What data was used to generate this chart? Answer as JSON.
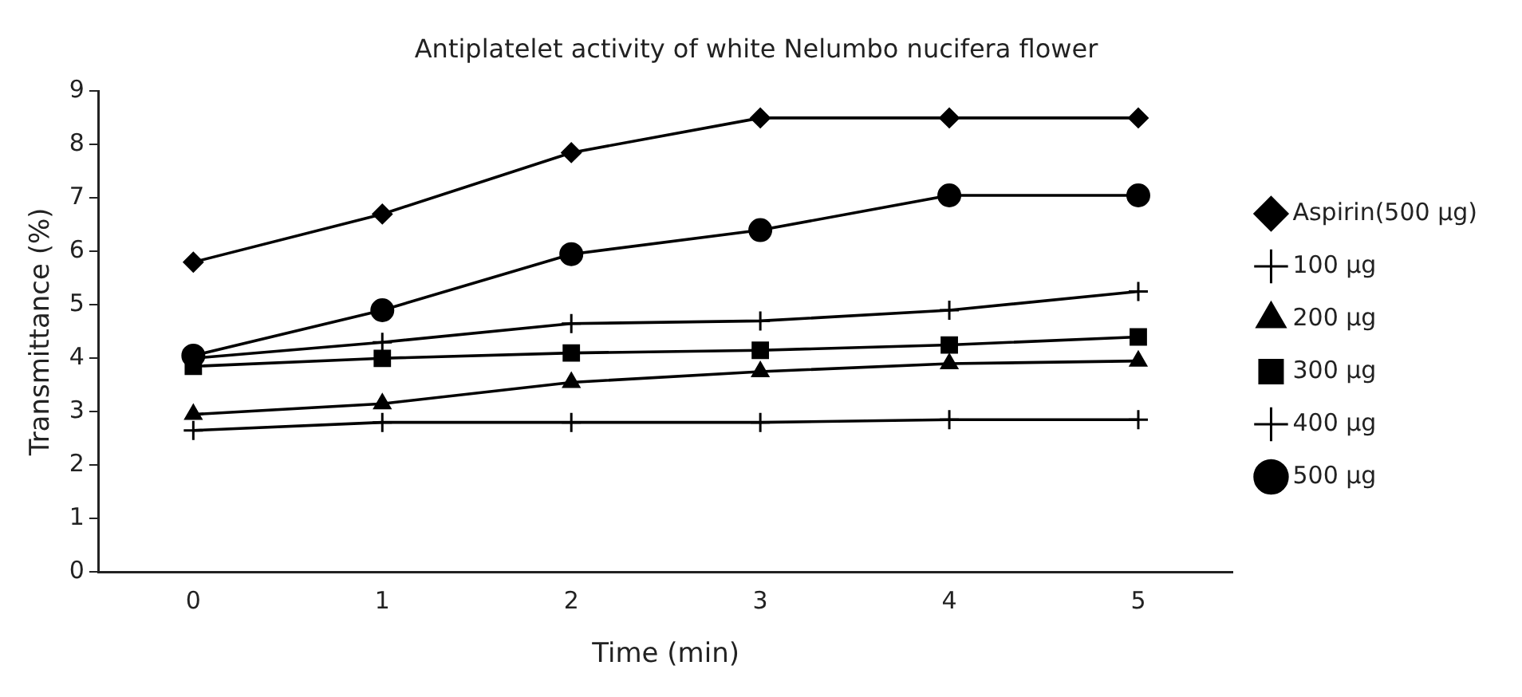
{
  "chart_data": {
    "type": "line",
    "title": "Antiplatelet activity of white Nelumbo nucifera flower",
    "xlabel": "Time (min)",
    "ylabel": "Transmittance (%)",
    "categories": [
      "0",
      "1",
      "2",
      "3",
      "4",
      "5"
    ],
    "series": [
      {
        "name": "Aspirin(500 µg)",
        "color": "#000000",
        "marker": "diamond",
        "values": [
          5.8,
          6.7,
          7.85,
          8.5,
          8.5,
          8.5
        ]
      },
      {
        "name": "100 µg",
        "color": "#000000",
        "marker": "cross",
        "values": [
          2.65,
          2.8,
          2.8,
          2.8,
          2.85,
          2.85
        ]
      },
      {
        "name": "200 µg",
        "color": "#000000",
        "marker": "triangle",
        "values": [
          2.95,
          3.15,
          3.55,
          3.75,
          3.9,
          3.95
        ]
      },
      {
        "name": "300 µg",
        "color": "#000000",
        "marker": "square",
        "values": [
          3.85,
          4.0,
          4.1,
          4.15,
          4.25,
          4.4
        ]
      },
      {
        "name": "400 µg",
        "color": "#000000",
        "marker": "cross",
        "values": [
          4.0,
          4.3,
          4.65,
          4.7,
          4.9,
          5.25
        ]
      },
      {
        "name": "500 µg",
        "color": "#000000",
        "marker": "circle",
        "values": [
          4.05,
          4.9,
          5.95,
          6.4,
          7.05,
          7.05
        ]
      }
    ],
    "ylim": [
      0,
      9
    ],
    "yticks": [
      0,
      1,
      2,
      3,
      4,
      5,
      6,
      7,
      8,
      9
    ],
    "grid": false,
    "legend": "right",
    "line_style": "solid"
  }
}
